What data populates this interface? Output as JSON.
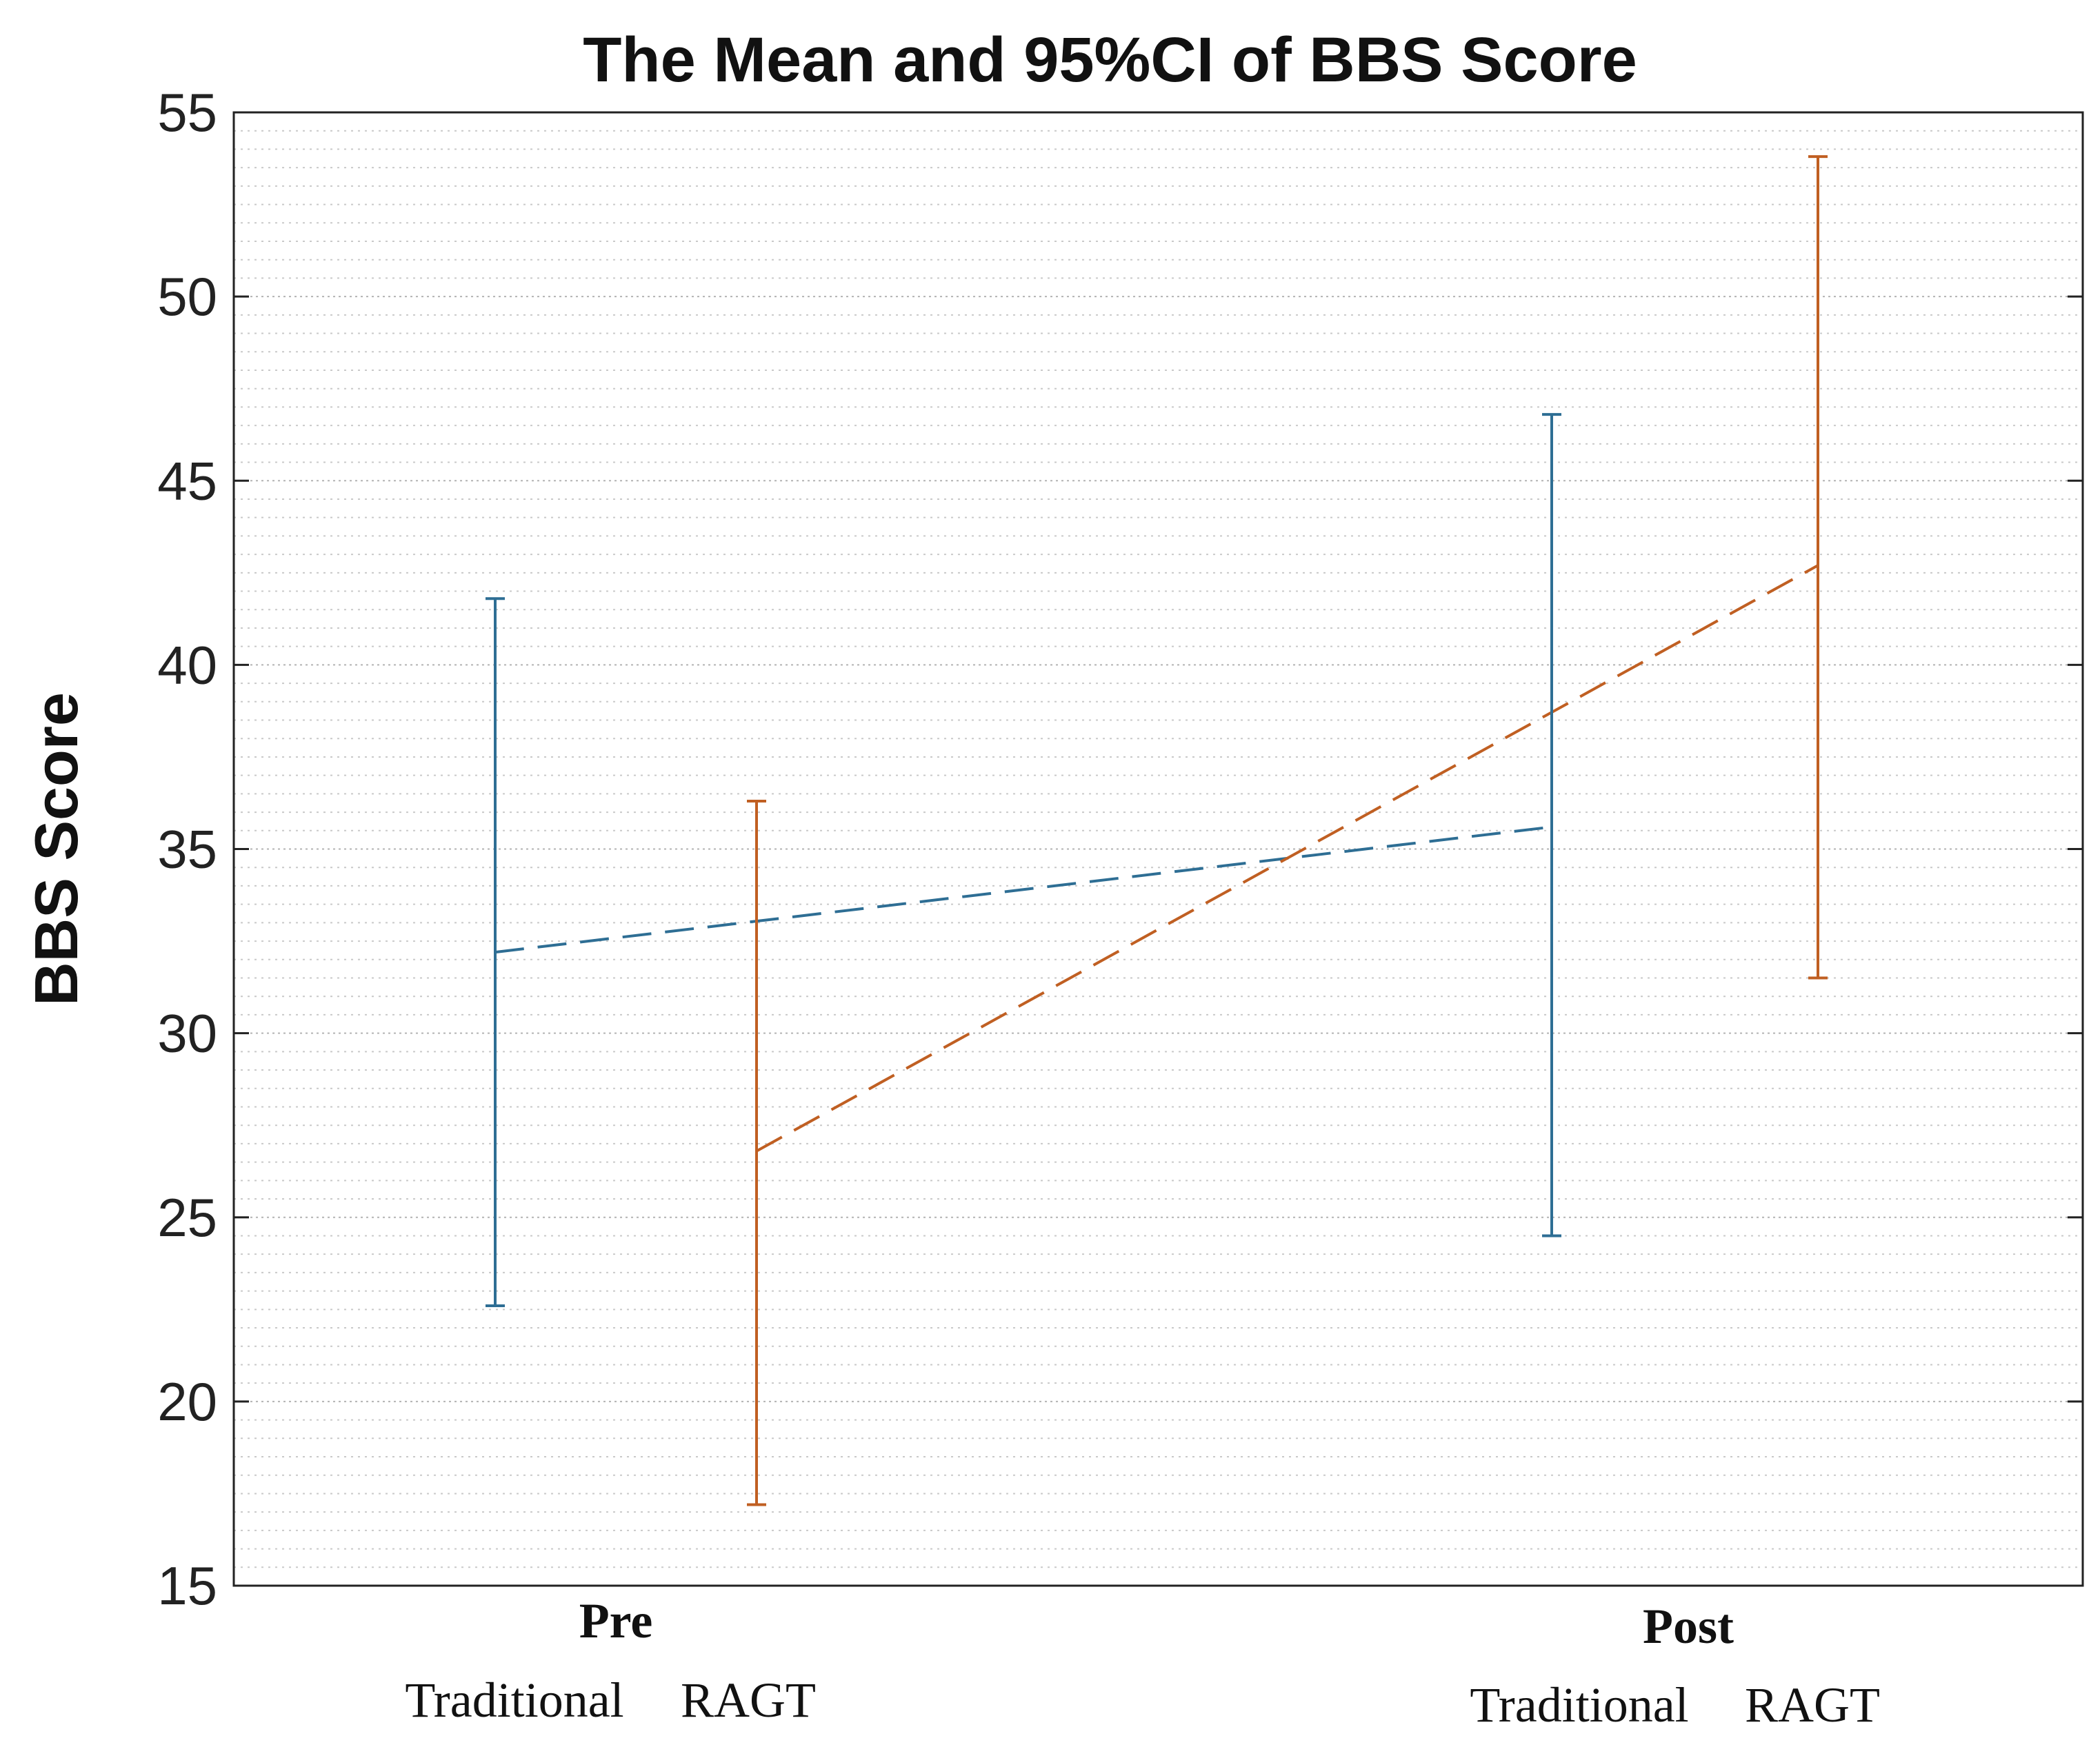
{
  "chart_data": {
    "type": "line",
    "title": "The Mean and 95%CI of BBS Score",
    "ylabel": "BBS Score",
    "xlabel": "",
    "ylim": [
      15,
      55
    ],
    "yticks": [
      15,
      20,
      25,
      30,
      35,
      40,
      45,
      50,
      55
    ],
    "minor_grid": true,
    "groups": [
      {
        "label": "Pre",
        "sublabels": [
          "Traditional",
          "RAGT"
        ]
      },
      {
        "label": "Post",
        "sublabels": [
          "Traditional",
          "RAGT"
        ]
      }
    ],
    "series": [
      {
        "name": "Traditional",
        "color": "#2e6e94",
        "points": [
          {
            "group": "Pre",
            "mean": 32.2,
            "lower": 22.6,
            "upper": 41.8
          },
          {
            "group": "Post",
            "mean": 35.6,
            "lower": 24.5,
            "upper": 46.8
          }
        ]
      },
      {
        "name": "RAGT",
        "color": "#c05f22",
        "points": [
          {
            "group": "Pre",
            "mean": 26.8,
            "lower": 17.2,
            "upper": 36.3
          },
          {
            "group": "Post",
            "mean": 42.7,
            "lower": 31.5,
            "upper": 53.8
          }
        ]
      }
    ]
  }
}
